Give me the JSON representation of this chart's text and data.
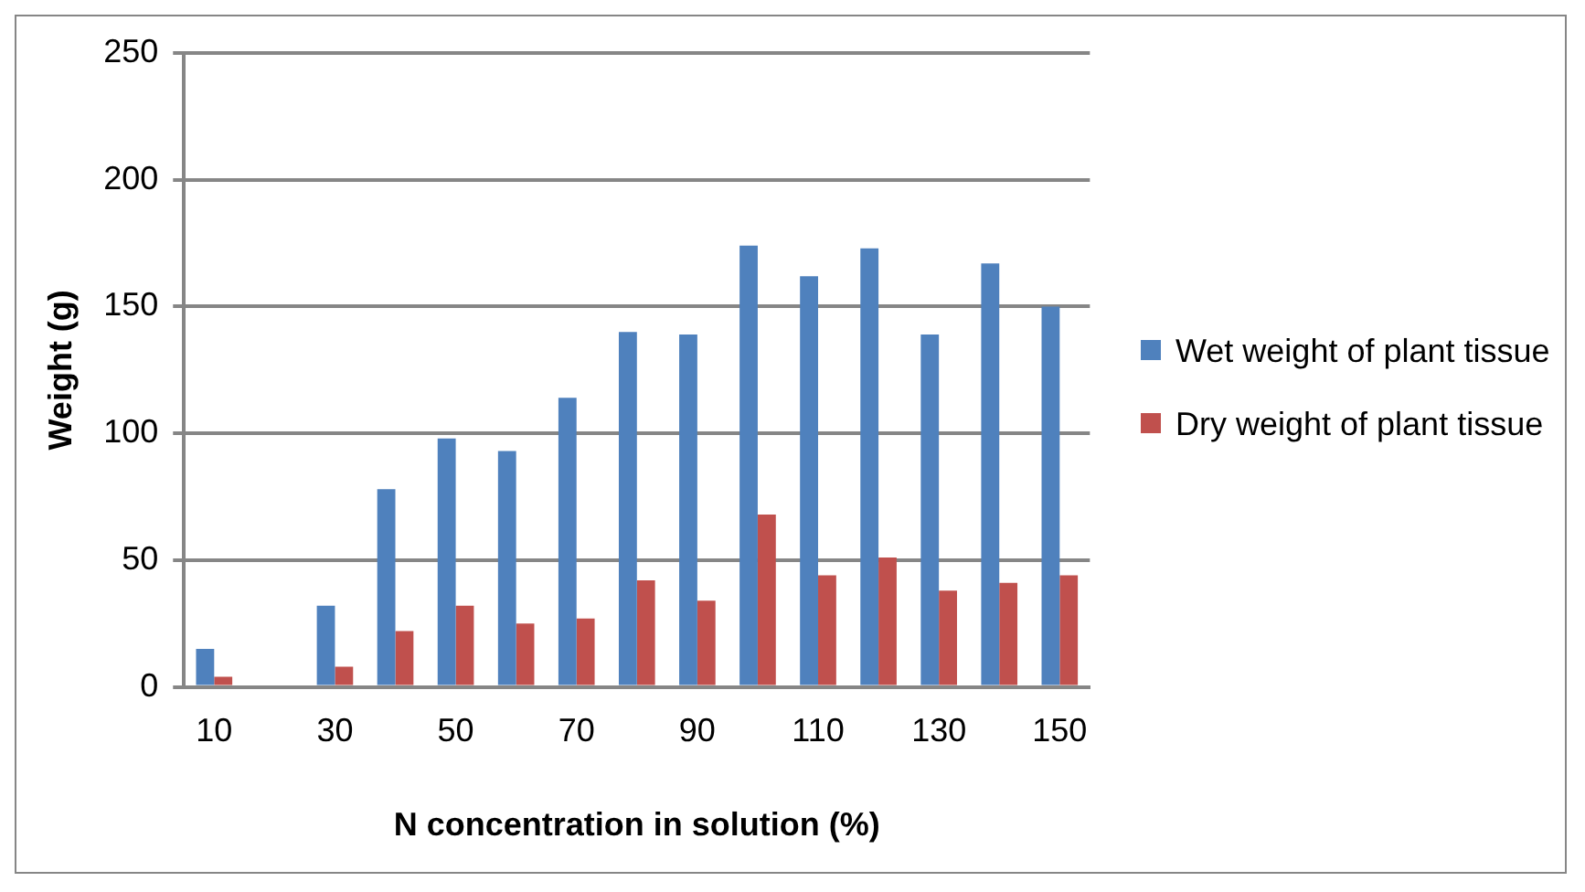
{
  "chart_data": {
    "type": "bar",
    "xlabel": "N concentration in solution (%)",
    "ylabel": "Weight (g)",
    "categories": [
      "10",
      null,
      "30",
      null,
      "50",
      null,
      "70",
      null,
      "90",
      null,
      "110",
      null,
      "130",
      null,
      "150"
    ],
    "series": [
      {
        "name": "Wet weight of plant tissue",
        "color": "#4f81bd",
        "values": [
          15,
          null,
          32,
          78,
          98,
          93,
          114,
          140,
          139,
          174,
          162,
          173,
          139,
          167,
          150
        ]
      },
      {
        "name": "Dry weight of plant tissue",
        "color": "#c0504d",
        "values": [
          4,
          null,
          8,
          22,
          32,
          25,
          27,
          42,
          34,
          68,
          44,
          51,
          38,
          41,
          44
        ]
      }
    ],
    "ylim": [
      0,
      250
    ],
    "yticks": [
      0,
      50,
      100,
      150,
      200,
      250
    ],
    "grid": "y",
    "legend": "right"
  }
}
